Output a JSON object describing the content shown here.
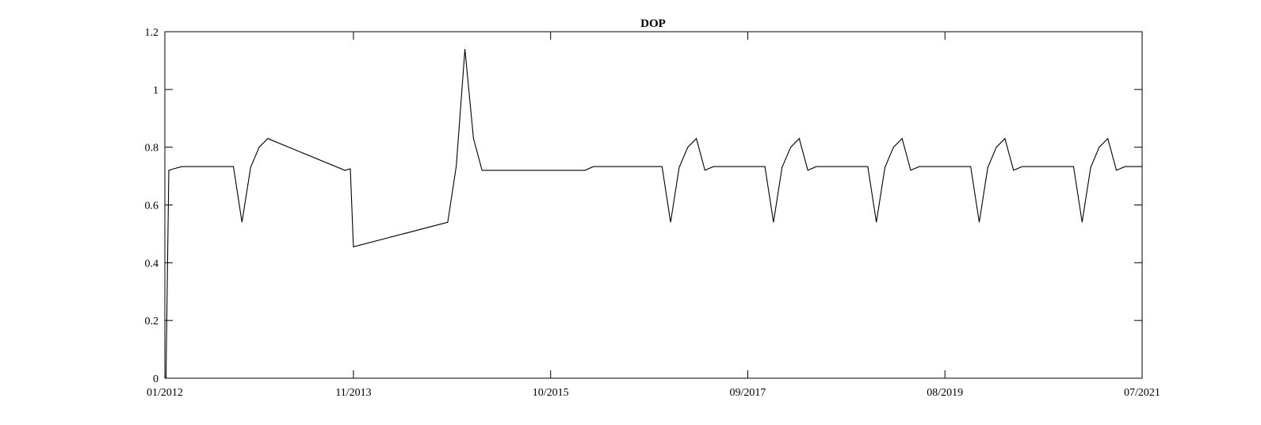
{
  "chart_data": {
    "type": "line",
    "title": "DOP",
    "xlabel": "",
    "ylabel": "",
    "xlim": [
      "2012-01",
      "2021-07"
    ],
    "ylim": [
      0,
      1.2
    ],
    "yticks": [
      0,
      0.2,
      0.4,
      0.6,
      0.8,
      1,
      1.2
    ],
    "ytick_labels": [
      "0",
      "0.2",
      "0.4",
      "0.6",
      "0.8",
      "1",
      "1.2"
    ],
    "xticks": [
      "2012-01",
      "2013-11",
      "2015-10",
      "2017-09",
      "2019-08",
      "2021-07"
    ],
    "xtick_labels": [
      "01/2012",
      "11/2013",
      "10/2015",
      "09/2017",
      "08/2019",
      "07/2021"
    ],
    "grid": false,
    "line_color": "#000000",
    "series": [
      {
        "points": [
          [
            "2012-01-05",
            0.0
          ],
          [
            "2012-01-15",
            0.72
          ],
          [
            "2012-02",
            0.725
          ],
          [
            "2012-03",
            0.733
          ],
          [
            "2012-04",
            0.733
          ],
          [
            "2012-05",
            0.733
          ],
          [
            "2012-06",
            0.733
          ],
          [
            "2012-07",
            0.733
          ],
          [
            "2012-08",
            0.733
          ],
          [
            "2012-09",
            0.733
          ],
          [
            "2012-10",
            0.54
          ],
          [
            "2012-11",
            0.73
          ],
          [
            "2012-12",
            0.8
          ],
          [
            "2013-01",
            0.83
          ],
          [
            "2013-10",
            0.72
          ],
          [
            "2013-10-20",
            0.725
          ],
          [
            "2013-11",
            0.455
          ],
          [
            "2014-10",
            0.54
          ],
          [
            "2014-11",
            0.735
          ],
          [
            "2014-12",
            1.14
          ],
          [
            "2015-01",
            0.83
          ],
          [
            "2015-02",
            0.72
          ],
          [
            "2016-02",
            0.72
          ],
          [
            "2016-03",
            0.733
          ],
          [
            "2016-11",
            0.733
          ],
          [
            "2016-12",
            0.54
          ],
          [
            "2017-01",
            0.73
          ],
          [
            "2017-02",
            0.8
          ],
          [
            "2017-03",
            0.83
          ],
          [
            "2017-04",
            0.72
          ],
          [
            "2017-05",
            0.733
          ],
          [
            "2017-11",
            0.733
          ],
          [
            "2017-12",
            0.54
          ],
          [
            "2018-01",
            0.73
          ],
          [
            "2018-02",
            0.8
          ],
          [
            "2018-03",
            0.83
          ],
          [
            "2018-04",
            0.72
          ],
          [
            "2018-05",
            0.733
          ],
          [
            "2018-11",
            0.733
          ],
          [
            "2018-12",
            0.54
          ],
          [
            "2019-01",
            0.73
          ],
          [
            "2019-02",
            0.8
          ],
          [
            "2019-03",
            0.83
          ],
          [
            "2019-04",
            0.72
          ],
          [
            "2019-05",
            0.733
          ],
          [
            "2019-11",
            0.733
          ],
          [
            "2019-12",
            0.54
          ],
          [
            "2020-01",
            0.73
          ],
          [
            "2020-02",
            0.8
          ],
          [
            "2020-03",
            0.83
          ],
          [
            "2020-04",
            0.72
          ],
          [
            "2020-05",
            0.733
          ],
          [
            "2020-11",
            0.733
          ],
          [
            "2020-12",
            0.54
          ],
          [
            "2021-01",
            0.73
          ],
          [
            "2021-02",
            0.8
          ],
          [
            "2021-03",
            0.83
          ],
          [
            "2021-04",
            0.72
          ],
          [
            "2021-05",
            0.733
          ],
          [
            "2021-07",
            0.733
          ]
        ]
      }
    ]
  }
}
